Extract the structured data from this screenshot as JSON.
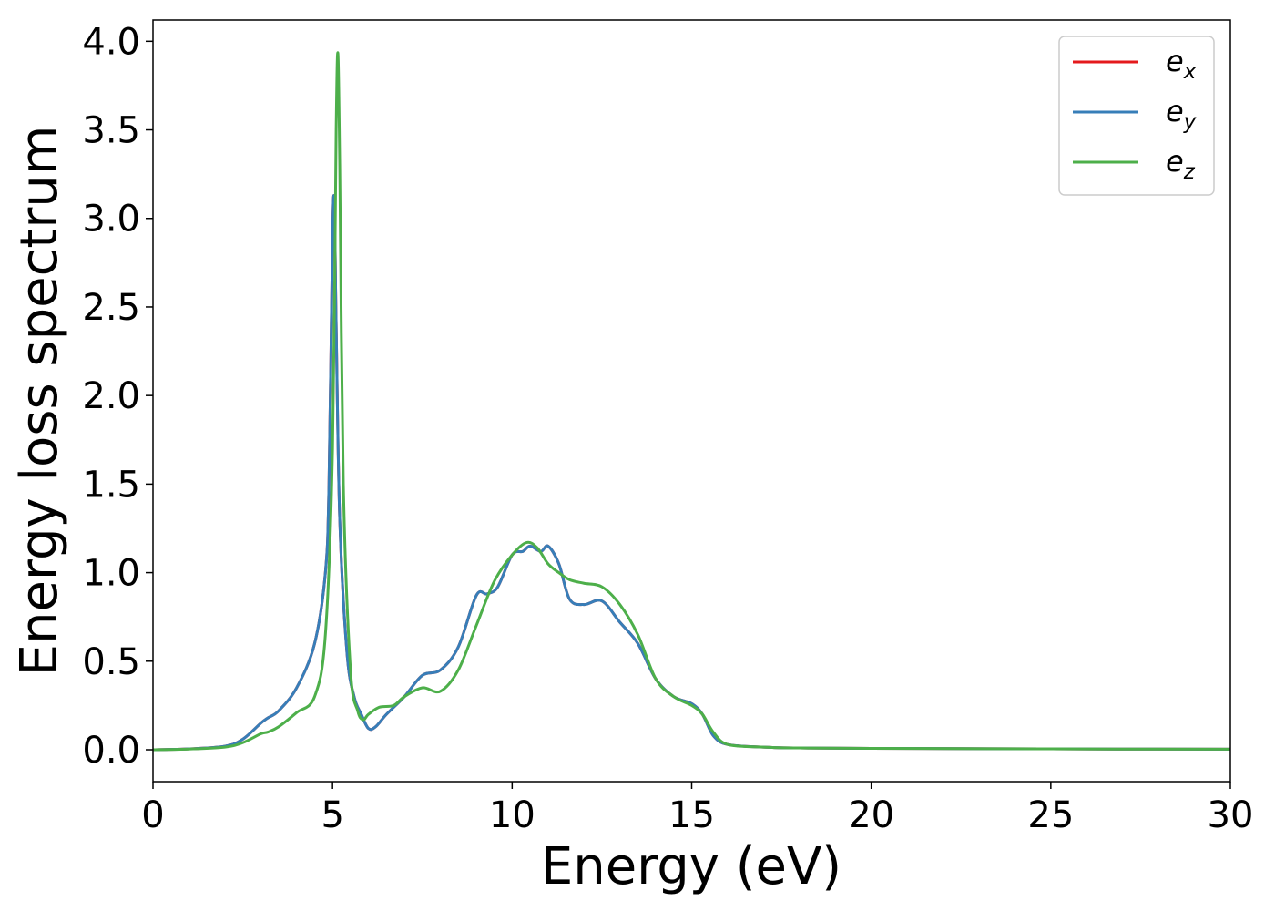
{
  "chart_data": {
    "type": "line",
    "title": "",
    "xlabel": "Energy (eV)",
    "ylabel": "Energy loss spectrum",
    "xlim": [
      0,
      30
    ],
    "ylim": [
      -0.18,
      4.12
    ],
    "xticks": [
      "0",
      "5",
      "10",
      "15",
      "20",
      "25",
      "30"
    ],
    "yticks": [
      "0.0",
      "0.5",
      "1.0",
      "1.5",
      "2.0",
      "2.5",
      "3.0",
      "3.5",
      "4.0"
    ],
    "grid": false,
    "legend_position": "top-right",
    "series": [
      {
        "name": "e_x",
        "label_base": "e",
        "label_sub": "x",
        "color": "#e41a1c",
        "x": [
          0,
          1,
          2,
          2.5,
          3,
          3.2,
          3.5,
          4,
          4.5,
          4.8,
          4.9,
          5.0,
          5.05,
          5.1,
          5.2,
          5.4,
          5.6,
          5.8,
          6.0,
          6.2,
          6.5,
          7.0,
          7.5,
          8.0,
          8.5,
          9.0,
          9.3,
          9.6,
          10.0,
          10.3,
          10.5,
          10.8,
          11.0,
          11.3,
          11.6,
          12.0,
          12.5,
          13.0,
          13.5,
          14.0,
          14.5,
          15.0,
          15.3,
          15.6,
          16.0,
          17,
          18,
          20,
          25,
          30
        ],
        "y": [
          0,
          0.005,
          0.02,
          0.06,
          0.15,
          0.18,
          0.22,
          0.35,
          0.6,
          1.0,
          1.5,
          2.9,
          3.08,
          2.4,
          1.3,
          0.55,
          0.3,
          0.2,
          0.12,
          0.13,
          0.2,
          0.3,
          0.42,
          0.45,
          0.58,
          0.87,
          0.88,
          0.92,
          1.1,
          1.12,
          1.15,
          1.12,
          1.15,
          1.05,
          0.85,
          0.82,
          0.84,
          0.72,
          0.6,
          0.4,
          0.3,
          0.26,
          0.2,
          0.08,
          0.03,
          0.015,
          0.01,
          0.008,
          0.005,
          0.003
        ]
      },
      {
        "name": "e_y",
        "label_base": "e",
        "label_sub": "y",
        "color": "#377eb8",
        "x": [
          0,
          1,
          2,
          2.5,
          3,
          3.2,
          3.5,
          4,
          4.5,
          4.8,
          4.9,
          5.0,
          5.05,
          5.1,
          5.2,
          5.4,
          5.6,
          5.8,
          6.0,
          6.2,
          6.5,
          7.0,
          7.5,
          8.0,
          8.5,
          9.0,
          9.3,
          9.6,
          10.0,
          10.3,
          10.5,
          10.8,
          11.0,
          11.3,
          11.6,
          12.0,
          12.5,
          13.0,
          13.5,
          14.0,
          14.5,
          15.0,
          15.3,
          15.6,
          16.0,
          17,
          18,
          20,
          25,
          30
        ],
        "y": [
          0,
          0.005,
          0.02,
          0.06,
          0.15,
          0.18,
          0.22,
          0.35,
          0.6,
          1.0,
          1.5,
          2.9,
          3.08,
          2.4,
          1.3,
          0.55,
          0.3,
          0.2,
          0.12,
          0.13,
          0.2,
          0.3,
          0.42,
          0.45,
          0.58,
          0.87,
          0.88,
          0.92,
          1.1,
          1.12,
          1.15,
          1.12,
          1.15,
          1.05,
          0.85,
          0.82,
          0.84,
          0.72,
          0.6,
          0.4,
          0.3,
          0.26,
          0.2,
          0.08,
          0.03,
          0.015,
          0.01,
          0.008,
          0.005,
          0.003
        ]
      },
      {
        "name": "e_z",
        "label_base": "e",
        "label_sub": "z",
        "color": "#4daf4a",
        "x": [
          0,
          1,
          2,
          2.5,
          3,
          3.2,
          3.5,
          4,
          4.5,
          4.8,
          5.0,
          5.1,
          5.15,
          5.2,
          5.3,
          5.5,
          5.7,
          5.85,
          6.0,
          6.3,
          6.7,
          7.0,
          7.5,
          8.0,
          8.5,
          9.0,
          9.5,
          10.0,
          10.4,
          10.7,
          11.0,
          11.3,
          11.6,
          12.0,
          12.5,
          13.0,
          13.5,
          14.0,
          14.5,
          15.0,
          15.3,
          15.6,
          16.0,
          17,
          18,
          20,
          25,
          30
        ],
        "y": [
          0,
          0.004,
          0.015,
          0.04,
          0.09,
          0.1,
          0.13,
          0.21,
          0.3,
          0.65,
          1.7,
          3.5,
          3.93,
          3.3,
          1.5,
          0.45,
          0.22,
          0.17,
          0.2,
          0.24,
          0.25,
          0.3,
          0.35,
          0.33,
          0.45,
          0.7,
          0.95,
          1.1,
          1.17,
          1.14,
          1.05,
          1.0,
          0.96,
          0.94,
          0.92,
          0.82,
          0.65,
          0.4,
          0.3,
          0.25,
          0.2,
          0.1,
          0.03,
          0.015,
          0.01,
          0.008,
          0.005,
          0.003
        ]
      }
    ]
  }
}
